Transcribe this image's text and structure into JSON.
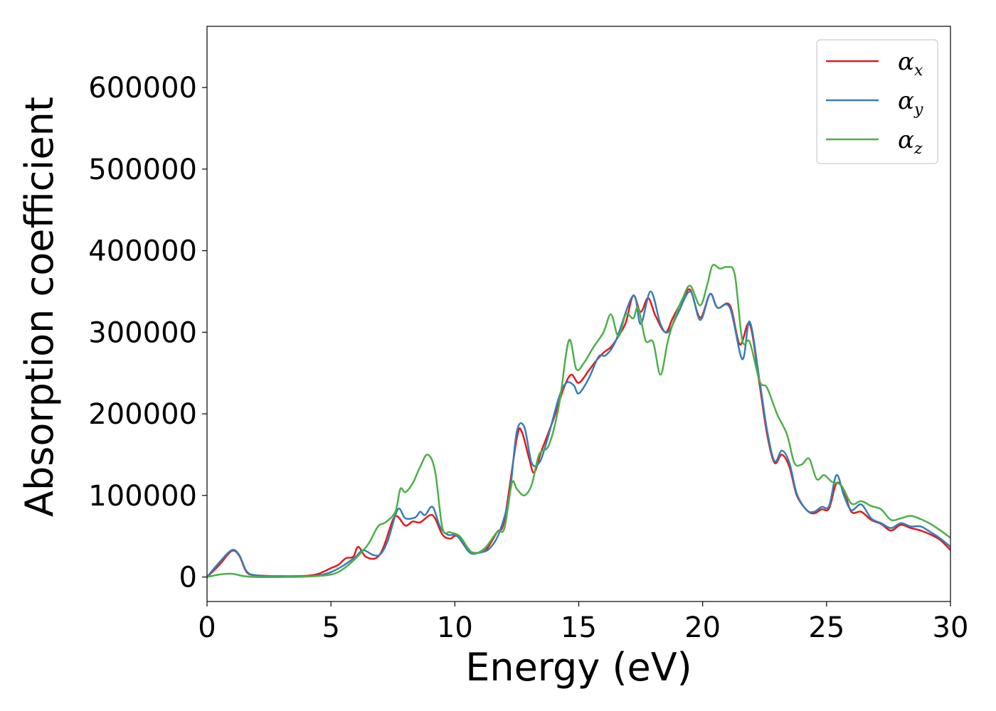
{
  "chart_data": {
    "type": "line",
    "title": "",
    "xlabel": "Energy (eV)",
    "ylabel": "Absorption coefficient",
    "xlim": [
      0,
      30
    ],
    "ylim": [
      -30000,
      675000
    ],
    "xticks": [
      0,
      5,
      10,
      15,
      20,
      25,
      30
    ],
    "xtick_labels": [
      "0",
      "5",
      "10",
      "15",
      "20",
      "25",
      "30"
    ],
    "yticks": [
      0,
      100000,
      200000,
      300000,
      400000,
      500000,
      600000
    ],
    "ytick_labels": [
      "0",
      "100000",
      "200000",
      "300000",
      "400000",
      "500000",
      "600000"
    ],
    "grid": false,
    "legend_position": "top-right",
    "series": [
      {
        "name": "α",
        "subscript": "x",
        "color": "#e41a1c",
        "points": [
          [
            0,
            0
          ],
          [
            0.5,
            15000
          ],
          [
            1.0,
            32000
          ],
          [
            1.3,
            26000
          ],
          [
            1.6,
            6000
          ],
          [
            2,
            2000
          ],
          [
            3,
            1000
          ],
          [
            4,
            1500
          ],
          [
            4.5,
            4000
          ],
          [
            5,
            11000
          ],
          [
            5.3,
            15000
          ],
          [
            5.6,
            23000
          ],
          [
            5.9,
            25000
          ],
          [
            6.1,
            37000
          ],
          [
            6.4,
            25000
          ],
          [
            6.8,
            23000
          ],
          [
            7.1,
            35000
          ],
          [
            7.5,
            70000
          ],
          [
            7.7,
            74000
          ],
          [
            8.0,
            63000
          ],
          [
            8.3,
            68000
          ],
          [
            8.6,
            67000
          ],
          [
            9.0,
            76000
          ],
          [
            9.2,
            72000
          ],
          [
            9.5,
            52000
          ],
          [
            9.8,
            47000
          ],
          [
            10.1,
            50000
          ],
          [
            10.6,
            32000
          ],
          [
            11.0,
            30000
          ],
          [
            11.3,
            35000
          ],
          [
            11.7,
            55000
          ],
          [
            12.0,
            70000
          ],
          [
            12.5,
            170000
          ],
          [
            12.7,
            178000
          ],
          [
            13.0,
            145000
          ],
          [
            13.2,
            128000
          ],
          [
            13.5,
            155000
          ],
          [
            14.0,
            195000
          ],
          [
            14.4,
            232000
          ],
          [
            14.7,
            248000
          ],
          [
            15.0,
            238000
          ],
          [
            15.4,
            253000
          ],
          [
            15.7,
            265000
          ],
          [
            16.0,
            275000
          ],
          [
            16.3,
            282000
          ],
          [
            16.6,
            295000
          ],
          [
            16.9,
            312000
          ],
          [
            17.2,
            345000
          ],
          [
            17.5,
            325000
          ],
          [
            17.8,
            342000
          ],
          [
            18.1,
            320000
          ],
          [
            18.5,
            300000
          ],
          [
            18.8,
            318000
          ],
          [
            19.2,
            340000
          ],
          [
            19.5,
            352000
          ],
          [
            19.9,
            318000
          ],
          [
            20.3,
            347000
          ],
          [
            20.6,
            330000
          ],
          [
            21.1,
            333000
          ],
          [
            21.5,
            285000
          ],
          [
            21.9,
            310000
          ],
          [
            22.3,
            235000
          ],
          [
            22.6,
            175000
          ],
          [
            22.9,
            140000
          ],
          [
            23.2,
            150000
          ],
          [
            23.5,
            135000
          ],
          [
            23.8,
            100000
          ],
          [
            24.2,
            82000
          ],
          [
            24.5,
            78000
          ],
          [
            24.8,
            83000
          ],
          [
            25.1,
            84000
          ],
          [
            25.4,
            115000
          ],
          [
            25.7,
            105000
          ],
          [
            26.0,
            80000
          ],
          [
            26.4,
            80000
          ],
          [
            26.8,
            70000
          ],
          [
            27.2,
            65000
          ],
          [
            27.6,
            57000
          ],
          [
            28.0,
            64000
          ],
          [
            28.4,
            60000
          ],
          [
            28.8,
            57000
          ],
          [
            29.2,
            52000
          ],
          [
            29.6,
            45000
          ],
          [
            30.0,
            33000
          ]
        ]
      },
      {
        "name": "α",
        "subscript": "y",
        "color": "#377eb8",
        "points": [
          [
            0,
            0
          ],
          [
            0.5,
            18000
          ],
          [
            1.0,
            33000
          ],
          [
            1.3,
            27000
          ],
          [
            1.6,
            7000
          ],
          [
            2,
            2000
          ],
          [
            3,
            1000
          ],
          [
            4,
            1000
          ],
          [
            4.5,
            2000
          ],
          [
            5,
            6000
          ],
          [
            5.5,
            14000
          ],
          [
            6.0,
            25000
          ],
          [
            6.3,
            33000
          ],
          [
            6.7,
            27000
          ],
          [
            7.0,
            28000
          ],
          [
            7.3,
            45000
          ],
          [
            7.7,
            83000
          ],
          [
            8.0,
            72000
          ],
          [
            8.4,
            73000
          ],
          [
            8.6,
            80000
          ],
          [
            8.8,
            76000
          ],
          [
            9.1,
            86000
          ],
          [
            9.4,
            62000
          ],
          [
            9.7,
            52000
          ],
          [
            10.1,
            50000
          ],
          [
            10.6,
            30000
          ],
          [
            11.0,
            30000
          ],
          [
            11.4,
            35000
          ],
          [
            11.8,
            55000
          ],
          [
            12.2,
            100000
          ],
          [
            12.5,
            178000
          ],
          [
            12.8,
            184000
          ],
          [
            13.1,
            140000
          ],
          [
            13.4,
            140000
          ],
          [
            13.7,
            165000
          ],
          [
            14.2,
            220000
          ],
          [
            14.5,
            238000
          ],
          [
            14.8,
            235000
          ],
          [
            15.0,
            225000
          ],
          [
            15.4,
            243000
          ],
          [
            15.8,
            270000
          ],
          [
            16.1,
            272000
          ],
          [
            16.5,
            290000
          ],
          [
            17.2,
            345000
          ],
          [
            17.5,
            310000
          ],
          [
            17.9,
            350000
          ],
          [
            18.3,
            310000
          ],
          [
            18.6,
            300000
          ],
          [
            19.0,
            323000
          ],
          [
            19.5,
            350000
          ],
          [
            19.9,
            315000
          ],
          [
            20.3,
            347000
          ],
          [
            20.6,
            330000
          ],
          [
            21.1,
            330000
          ],
          [
            21.6,
            267000
          ],
          [
            21.9,
            313000
          ],
          [
            22.3,
            240000
          ],
          [
            22.6,
            180000
          ],
          [
            22.9,
            142000
          ],
          [
            23.2,
            155000
          ],
          [
            23.5,
            140000
          ],
          [
            23.8,
            102000
          ],
          [
            24.2,
            82000
          ],
          [
            24.5,
            80000
          ],
          [
            24.8,
            86000
          ],
          [
            25.1,
            87000
          ],
          [
            25.4,
            125000
          ],
          [
            25.7,
            100000
          ],
          [
            26.0,
            82000
          ],
          [
            26.4,
            89000
          ],
          [
            26.8,
            72000
          ],
          [
            27.2,
            66000
          ],
          [
            27.6,
            60000
          ],
          [
            28.0,
            66000
          ],
          [
            28.4,
            62000
          ],
          [
            28.8,
            62000
          ],
          [
            29.2,
            55000
          ],
          [
            29.6,
            47000
          ],
          [
            30.0,
            37000
          ]
        ]
      },
      {
        "name": "α",
        "subscript": "z",
        "color": "#4daf4a",
        "points": [
          [
            0,
            0
          ],
          [
            0.5,
            3000
          ],
          [
            1.0,
            4000
          ],
          [
            1.5,
            1000
          ],
          [
            2,
            0
          ],
          [
            3,
            0
          ],
          [
            4,
            500
          ],
          [
            5,
            3000
          ],
          [
            5.5,
            10000
          ],
          [
            6.0,
            23000
          ],
          [
            6.5,
            40000
          ],
          [
            6.9,
            62000
          ],
          [
            7.2,
            67000
          ],
          [
            7.6,
            80000
          ],
          [
            7.8,
            108000
          ],
          [
            8.0,
            104000
          ],
          [
            8.3,
            115000
          ],
          [
            8.6,
            135000
          ],
          [
            8.9,
            150000
          ],
          [
            9.2,
            130000
          ],
          [
            9.5,
            60000
          ],
          [
            9.8,
            55000
          ],
          [
            10.2,
            50000
          ],
          [
            10.7,
            30000
          ],
          [
            11.2,
            35000
          ],
          [
            11.7,
            55000
          ],
          [
            12.0,
            60000
          ],
          [
            12.3,
            115000
          ],
          [
            12.5,
            108000
          ],
          [
            12.8,
            100000
          ],
          [
            13.1,
            113000
          ],
          [
            13.4,
            150000
          ],
          [
            13.8,
            162000
          ],
          [
            14.2,
            210000
          ],
          [
            14.6,
            290000
          ],
          [
            14.9,
            255000
          ],
          [
            15.2,
            262000
          ],
          [
            15.6,
            282000
          ],
          [
            16.0,
            300000
          ],
          [
            16.3,
            322000
          ],
          [
            16.6,
            295000
          ],
          [
            16.9,
            322000
          ],
          [
            17.2,
            317000
          ],
          [
            17.4,
            330000
          ],
          [
            17.7,
            290000
          ],
          [
            18.0,
            288000
          ],
          [
            18.3,
            248000
          ],
          [
            18.6,
            290000
          ],
          [
            18.9,
            320000
          ],
          [
            19.2,
            342000
          ],
          [
            19.5,
            357000
          ],
          [
            19.9,
            333000
          ],
          [
            20.2,
            360000
          ],
          [
            20.4,
            382000
          ],
          [
            20.7,
            378000
          ],
          [
            21.0,
            380000
          ],
          [
            21.3,
            370000
          ],
          [
            21.6,
            290000
          ],
          [
            21.9,
            288000
          ],
          [
            22.3,
            240000
          ],
          [
            22.6,
            232000
          ],
          [
            23.0,
            200000
          ],
          [
            23.4,
            175000
          ],
          [
            23.7,
            140000
          ],
          [
            24.0,
            138000
          ],
          [
            24.3,
            145000
          ],
          [
            24.6,
            120000
          ],
          [
            24.9,
            125000
          ],
          [
            25.2,
            117000
          ],
          [
            25.6,
            112000
          ],
          [
            26.0,
            90000
          ],
          [
            26.4,
            93000
          ],
          [
            26.8,
            87000
          ],
          [
            27.2,
            83000
          ],
          [
            27.6,
            70000
          ],
          [
            28.0,
            72000
          ],
          [
            28.4,
            75000
          ],
          [
            28.8,
            71000
          ],
          [
            29.2,
            65000
          ],
          [
            29.6,
            57000
          ],
          [
            30.0,
            48000
          ]
        ]
      }
    ]
  }
}
